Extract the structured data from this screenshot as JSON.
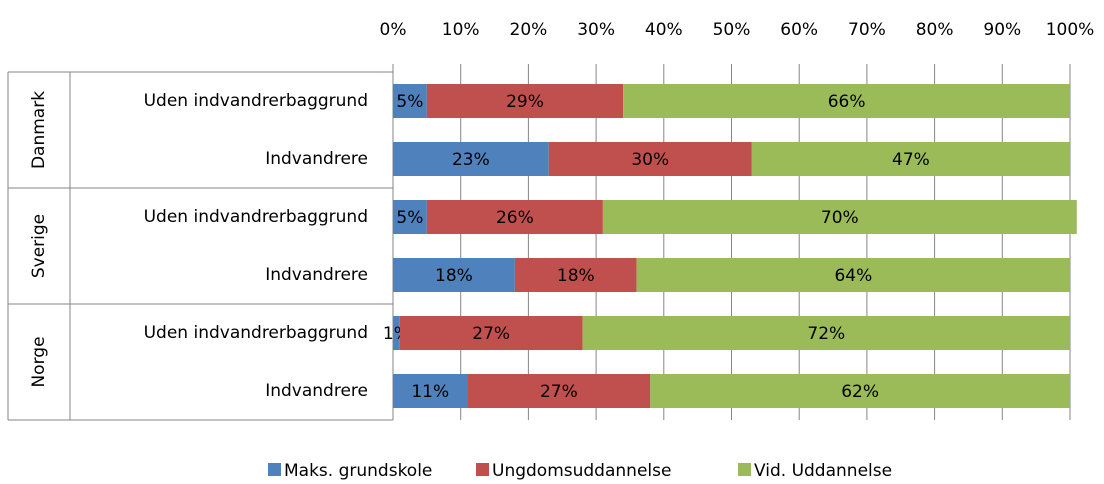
{
  "chart_data": {
    "type": "stacked-bar-horizontal",
    "groups": [
      "Danmark",
      "Sverige",
      "Norge"
    ],
    "categories": [
      "Uden indvandrerbaggrund",
      "Indvandrere",
      "Uden indvandrerbaggrund",
      "Indvandrere",
      "Uden indvandrerbaggrund",
      "Indvandrere"
    ],
    "series": [
      {
        "name": "Maks. grundskole",
        "color": "#4f81bd",
        "values": [
          5,
          23,
          5,
          18,
          1,
          11
        ],
        "value_labels": [
          "5%",
          "23%",
          "5%",
          "18%",
          "1%",
          "11%"
        ]
      },
      {
        "name": "Ungdomsuddannelse",
        "color": "#c0504d",
        "values": [
          29,
          30,
          26,
          18,
          27,
          27
        ],
        "value_labels": [
          "29%",
          "30%",
          "26%",
          "18%",
          "27%",
          "27%"
        ]
      },
      {
        "name": "Vid. Uddannelse",
        "color": "#9bbb59",
        "values": [
          66,
          47,
          70,
          64,
          72,
          62
        ],
        "value_labels": [
          "66%",
          "47%",
          "70%",
          "64%",
          "72%",
          "62%"
        ]
      }
    ],
    "xlim": [
      0,
      100
    ],
    "xticks": [
      {
        "value": 0,
        "label": "0%"
      },
      {
        "value": 10,
        "label": "10%"
      },
      {
        "value": 20,
        "label": "20%"
      },
      {
        "value": 30,
        "label": "30%"
      },
      {
        "value": 40,
        "label": "40%"
      },
      {
        "value": 50,
        "label": "50%"
      },
      {
        "value": 60,
        "label": "60%"
      },
      {
        "value": 70,
        "label": "70%"
      },
      {
        "value": 80,
        "label": "80%"
      },
      {
        "value": 90,
        "label": "90%"
      },
      {
        "value": 100,
        "label": "100%"
      }
    ],
    "grid": true,
    "legend": "bottom"
  }
}
